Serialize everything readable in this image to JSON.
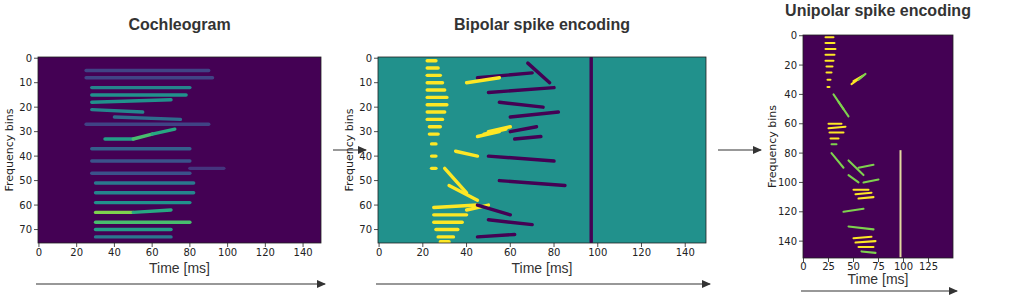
{
  "chart_data": [
    {
      "type": "heatmap",
      "title": "Cochleogram",
      "x_label": "Time [ms]",
      "y_label": "Frequency bins",
      "xlim": [
        -0.5,
        149.5
      ],
      "ylim": [
        -0.5,
        75.5
      ],
      "xticks": [
        0,
        20,
        40,
        60,
        80,
        100,
        120,
        140
      ],
      "yticks": [
        0,
        10,
        20,
        30,
        40,
        50,
        60,
        70
      ],
      "vlim": [
        0,
        1
      ],
      "background": 0,
      "strokes": [
        [
          25,
          5,
          90,
          5,
          0.2
        ],
        [
          25,
          8,
          92,
          8,
          0.2
        ],
        [
          25,
          27,
          90,
          27,
          0.2
        ],
        [
          80,
          45,
          98,
          45,
          0.15
        ],
        [
          28,
          12,
          80,
          12,
          0.45
        ],
        [
          28,
          15,
          78,
          15,
          0.5
        ],
        [
          28,
          18,
          70,
          17,
          0.5
        ],
        [
          28,
          21,
          55,
          22,
          0.45
        ],
        [
          40,
          24,
          75,
          25,
          0.35
        ],
        [
          35,
          33,
          50,
          33,
          0.55
        ],
        [
          50,
          33,
          60,
          31,
          0.7
        ],
        [
          60,
          31,
          72,
          29,
          0.6
        ],
        [
          28,
          37,
          80,
          37,
          0.3
        ],
        [
          28,
          42,
          80,
          42,
          0.25
        ],
        [
          28,
          47,
          80,
          47,
          0.25
        ],
        [
          30,
          51,
          82,
          51,
          0.4
        ],
        [
          30,
          55,
          82,
          55,
          0.45
        ],
        [
          30,
          59,
          80,
          59,
          0.5
        ],
        [
          30,
          63,
          50,
          63,
          0.8
        ],
        [
          50,
          63,
          70,
          62,
          0.6
        ],
        [
          30,
          67,
          80,
          67,
          0.7
        ],
        [
          30,
          70,
          70,
          70,
          0.55
        ],
        [
          30,
          73,
          70,
          73,
          0.4
        ]
      ]
    },
    {
      "type": "heatmap",
      "title": "Bipolar spike encoding",
      "x_label": "Time [ms]",
      "y_label": "Frequency bins",
      "xlim": [
        -0.5,
        149.5
      ],
      "ylim": [
        -0.5,
        75.5
      ],
      "xticks": [
        0,
        20,
        40,
        60,
        80,
        100,
        120,
        140
      ],
      "yticks": [
        0,
        10,
        20,
        30,
        40,
        50,
        60,
        70
      ],
      "vlim": [
        -1,
        1
      ],
      "background": 0,
      "strokes": [
        [
          22,
          1,
          26,
          1,
          1
        ],
        [
          22,
          4,
          27,
          4,
          1
        ],
        [
          22,
          7,
          28,
          7,
          1
        ],
        [
          22,
          10,
          29,
          10,
          1
        ],
        [
          22,
          13,
          30,
          13,
          1
        ],
        [
          22,
          16,
          31,
          16,
          1
        ],
        [
          22,
          19,
          31,
          19,
          1
        ],
        [
          22,
          22,
          30,
          22,
          1
        ],
        [
          22,
          25,
          29,
          25,
          1
        ],
        [
          23,
          28,
          28,
          28,
          1
        ],
        [
          23,
          31,
          27,
          31,
          1
        ],
        [
          24,
          35,
          26,
          35,
          1
        ],
        [
          24,
          40,
          26,
          40,
          1
        ],
        [
          24,
          45,
          26,
          45,
          1
        ],
        [
          45,
          32,
          55,
          30,
          1
        ],
        [
          48,
          31,
          58,
          29,
          1
        ],
        [
          50,
          30,
          60,
          28,
          1
        ],
        [
          60,
          30,
          72,
          28,
          -1
        ],
        [
          62,
          33,
          74,
          32,
          -1
        ],
        [
          25,
          61,
          45,
          60,
          1
        ],
        [
          25,
          64,
          40,
          64,
          1
        ],
        [
          25,
          67,
          38,
          67,
          1
        ],
        [
          26,
          70,
          36,
          70,
          1
        ],
        [
          27,
          73,
          34,
          73,
          1
        ],
        [
          28,
          75,
          32,
          75,
          1
        ],
        [
          40,
          62,
          50,
          60,
          1
        ],
        [
          45,
          8,
          70,
          6,
          -1
        ],
        [
          50,
          14,
          80,
          12,
          -1
        ],
        [
          55,
          18,
          75,
          20,
          -1
        ],
        [
          60,
          24,
          82,
          22,
          -1
        ],
        [
          50,
          40,
          80,
          42,
          -1
        ],
        [
          55,
          50,
          85,
          52,
          -1
        ],
        [
          45,
          60,
          60,
          64,
          -1
        ],
        [
          50,
          66,
          70,
          68,
          -1
        ],
        [
          45,
          73,
          62,
          72,
          -1
        ],
        [
          68,
          2,
          78,
          10,
          -1
        ],
        [
          30,
          45,
          40,
          55,
          1
        ],
        [
          32,
          52,
          45,
          58,
          1
        ],
        [
          40,
          10,
          55,
          8,
          1
        ],
        [
          35,
          38,
          45,
          40,
          1
        ],
        [
          97,
          0,
          97,
          75,
          -1
        ]
      ]
    },
    {
      "type": "heatmap",
      "title": "Unipolar spike encoding",
      "x_label": "Time [ms]",
      "y_label": "Frequency bins",
      "xlim": [
        -0.5,
        149.5
      ],
      "ylim": [
        -0.5,
        151.5
      ],
      "xticks": [
        0,
        25,
        50,
        75,
        100,
        125
      ],
      "yticks": [
        0,
        20,
        40,
        60,
        80,
        100,
        120,
        140
      ],
      "vlim": [
        0,
        1
      ],
      "background": 0,
      "strokes": [
        [
          22,
          1,
          30,
          1,
          1
        ],
        [
          22,
          5,
          31,
          5,
          1
        ],
        [
          22,
          9,
          32,
          9,
          1
        ],
        [
          22,
          13,
          31,
          13,
          1
        ],
        [
          22,
          17,
          30,
          17,
          1
        ],
        [
          23,
          21,
          29,
          21,
          1
        ],
        [
          23,
          25,
          28,
          25,
          1
        ],
        [
          24,
          30,
          27,
          30,
          1
        ],
        [
          24,
          35,
          26,
          35,
          1
        ],
        [
          48,
          33,
          58,
          28,
          1
        ],
        [
          50,
          31,
          60,
          27,
          1
        ],
        [
          55,
          30,
          62,
          26,
          0.8
        ],
        [
          25,
          60,
          38,
          60,
          1
        ],
        [
          25,
          63,
          42,
          62,
          1
        ],
        [
          26,
          66,
          40,
          66,
          1
        ],
        [
          27,
          70,
          35,
          70,
          1
        ],
        [
          28,
          74,
          33,
          74,
          0.8
        ],
        [
          30,
          40,
          40,
          50,
          0.8
        ],
        [
          35,
          45,
          45,
          55,
          0.8
        ],
        [
          28,
          80,
          40,
          90,
          0.8
        ],
        [
          45,
          85,
          60,
          95,
          0.8
        ],
        [
          55,
          90,
          70,
          88,
          0.8
        ],
        [
          45,
          95,
          55,
          100,
          0.8
        ],
        [
          50,
          105,
          65,
          105,
          1
        ],
        [
          52,
          108,
          68,
          107,
          1
        ],
        [
          55,
          111,
          70,
          110,
          1
        ],
        [
          60,
          100,
          75,
          98,
          0.8
        ],
        [
          40,
          120,
          60,
          118,
          0.8
        ],
        [
          45,
          130,
          70,
          132,
          0.8
        ],
        [
          50,
          138,
          68,
          137,
          1
        ],
        [
          52,
          141,
          72,
          140,
          1
        ],
        [
          55,
          144,
          70,
          144,
          1
        ],
        [
          58,
          147,
          72,
          148,
          0.8
        ]
      ],
      "end_marker": {
        "time": 97,
        "bins": [
          78,
          151
        ],
        "color": "#e3d9a0"
      }
    }
  ]
}
